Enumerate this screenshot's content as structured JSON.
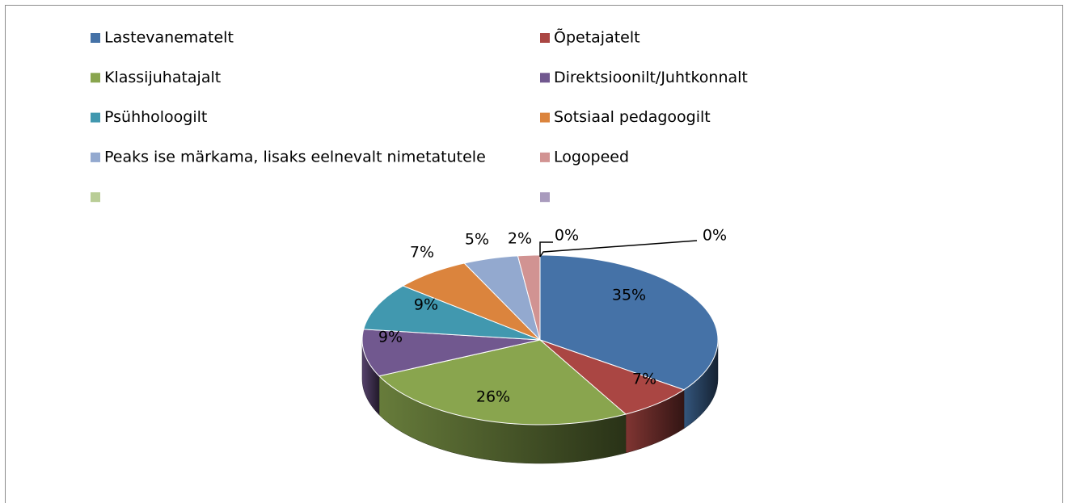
{
  "chart_data": {
    "type": "pie",
    "categories": [
      "Lastevanematelt",
      "Õpetajatelt",
      "Klassijuhatajalt",
      "Direktsioonilt/Juhtkonnalt",
      "Psühholoogilt",
      "Sotsiaal pedagoogilt",
      "Peaks ise märkama, lisaks eelnevalt nimetatutele",
      "Logopeed",
      null,
      null
    ],
    "values": [
      35,
      7,
      26,
      9,
      9,
      7,
      5,
      2,
      0,
      0
    ],
    "value_labels": [
      "35%",
      "7%",
      "26%",
      "9%",
      "9%",
      "7%",
      "5%",
      "2%",
      "0%",
      "0%"
    ],
    "colors": [
      "#4572a7",
      "#aa4643",
      "#89a54e",
      "#71588f",
      "#4198af",
      "#db843d",
      "#93a9cf",
      "#d19392",
      "#b9cd96",
      "#a99bbd"
    ],
    "legend": "top"
  }
}
